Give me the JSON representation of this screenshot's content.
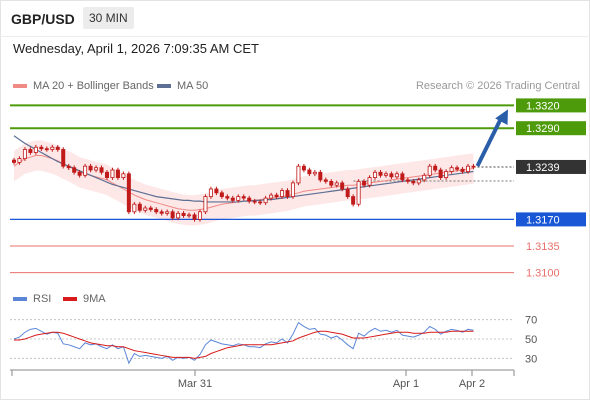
{
  "header": {
    "pair": "GBP/USD",
    "timeframe": "30 MIN"
  },
  "timestamp": "Wednesday, April 1, 2026 7:09:35 AM CET",
  "legend": {
    "ma": "MA 20 + Bollinger Bands",
    "ma50": "MA 50",
    "rsi": "RSI",
    "ma9": "9MA"
  },
  "credit": "Research © 2026 Trading Central",
  "colors": {
    "resistance": "#4d9b0a",
    "support": "#1a57d6",
    "target": "#e8706b",
    "last": "#333333",
    "candle": "#c01a1a",
    "ma20": "#f08a85",
    "ma50": "#5d6f93",
    "band": "#fde3e3",
    "rsi": "#5b86d8",
    "rsi_ma": "#d81a1a"
  },
  "chart_data": [
    {
      "type": "candlestick",
      "ylim": [
        1.3085,
        1.3335
      ],
      "x_ticks": [
        "Mar 31",
        "Apr 1",
        "Apr 2"
      ],
      "levels": [
        {
          "value": 1.332,
          "label": "1.3320",
          "kind": "resistance"
        },
        {
          "value": 1.329,
          "label": "1.3290",
          "kind": "resistance"
        },
        {
          "value": 1.3239,
          "label": "1.3239",
          "kind": "last"
        },
        {
          "value": 1.317,
          "label": "1.3170",
          "kind": "support"
        },
        {
          "value": 1.3135,
          "label": "1.3135",
          "kind": "target"
        },
        {
          "value": 1.31,
          "label": "1.3100",
          "kind": "target"
        }
      ],
      "close": [
        1.3245,
        1.325,
        1.3262,
        1.3258,
        1.3265,
        1.3263,
        1.3262,
        1.3265,
        1.3262,
        1.324,
        1.3238,
        1.3232,
        1.3228,
        1.324,
        1.3235,
        1.3238,
        1.3232,
        1.3225,
        1.3235,
        1.3225,
        1.323,
        1.318,
        1.319,
        1.3182,
        1.3185,
        1.3183,
        1.318,
        1.3178,
        1.318,
        1.3172,
        1.3178,
        1.3175,
        1.3176,
        1.317,
        1.318,
        1.32,
        1.321,
        1.3205,
        1.32,
        1.3198,
        1.3195,
        1.32,
        1.3198,
        1.3194,
        1.3193,
        1.3192,
        1.3198,
        1.3202,
        1.32,
        1.3208,
        1.32,
        1.3218,
        1.324,
        1.3235,
        1.323,
        1.3232,
        1.3222,
        1.322,
        1.3215,
        1.3218,
        1.321,
        1.32,
        1.319,
        1.322,
        1.3215,
        1.3225,
        1.3232,
        1.3228,
        1.323,
        1.3226,
        1.323,
        1.3222,
        1.322,
        1.3218,
        1.3222,
        1.3228,
        1.324,
        1.3235,
        1.3225,
        1.3233,
        1.3238,
        1.3236,
        1.3233,
        1.324,
        1.3239
      ],
      "ma20": [
        1.324,
        1.3245,
        1.325,
        1.3252,
        1.3254,
        1.3254,
        1.3252,
        1.325,
        1.3247,
        1.3243,
        1.324,
        1.3236,
        1.3232,
        1.323,
        1.3228,
        1.3226,
        1.3224,
        1.3222,
        1.3218,
        1.3214,
        1.321,
        1.3206,
        1.3202,
        1.3199,
        1.3196,
        1.3194,
        1.3192,
        1.319,
        1.3188,
        1.3186,
        1.3184,
        1.3183,
        1.3182,
        1.3182,
        1.3183,
        1.3184,
        1.3186,
        1.3188,
        1.319,
        1.3191,
        1.3192,
        1.3193,
        1.3194,
        1.3195,
        1.3195,
        1.3196,
        1.3197,
        1.3198,
        1.3199,
        1.32,
        1.3201,
        1.3203,
        1.3205,
        1.3207,
        1.3208,
        1.3209,
        1.321,
        1.3211,
        1.3212,
        1.3213,
        1.3214,
        1.3215,
        1.3215,
        1.3216,
        1.3217,
        1.3218,
        1.3219,
        1.322,
        1.3221,
        1.3222,
        1.3223,
        1.3224,
        1.3225,
        1.3226,
        1.3227,
        1.3228,
        1.3229,
        1.323,
        1.3231,
        1.3232,
        1.3233,
        1.3234,
        1.3235,
        1.3236,
        1.3237
      ],
      "ma50": [
        1.328,
        1.3275,
        1.327,
        1.3266,
        1.3262,
        1.3258,
        1.3254,
        1.325,
        1.3246,
        1.3243,
        1.324,
        1.3237,
        1.3234,
        1.3231,
        1.3228,
        1.3225,
        1.3222,
        1.3219,
        1.3216,
        1.3214,
        1.3212,
        1.321,
        1.3208,
        1.3206,
        1.3204,
        1.3202,
        1.32,
        1.3199,
        1.3198,
        1.3197,
        1.3196,
        1.3195,
        1.3195,
        1.3194,
        1.3194,
        1.3193,
        1.3193,
        1.3193,
        1.3193,
        1.3193,
        1.3193,
        1.3193,
        1.3194,
        1.3194,
        1.3195,
        1.3195,
        1.3196,
        1.3196,
        1.3197,
        1.3198,
        1.3199,
        1.32,
        1.3201,
        1.3202,
        1.3203,
        1.3204,
        1.3205,
        1.3206,
        1.3207,
        1.3208,
        1.3209,
        1.321,
        1.3211,
        1.3212,
        1.3213,
        1.3214,
        1.3215,
        1.3216,
        1.3217,
        1.3218,
        1.3219,
        1.322,
        1.3221,
        1.3222,
        1.3223,
        1.3224,
        1.3225,
        1.3226,
        1.3227,
        1.3228,
        1.3229,
        1.323,
        1.3231,
        1.3232,
        1.3233
      ],
      "projection": {
        "from": 1.3239,
        "to": 1.332
      }
    },
    {
      "type": "line",
      "ylim": [
        20,
        80
      ],
      "y_ticks": [
        70,
        50,
        30
      ],
      "series": [
        {
          "name": "RSI",
          "values": [
            50,
            52,
            57,
            60,
            61,
            58,
            55,
            57,
            56,
            45,
            44,
            42,
            40,
            46,
            44,
            45,
            42,
            40,
            44,
            40,
            42,
            25,
            35,
            32,
            33,
            32,
            31,
            30,
            32,
            28,
            31,
            30,
            31,
            28,
            34,
            44,
            49,
            47,
            45,
            44,
            43,
            45,
            44,
            42,
            42,
            41,
            45,
            47,
            46,
            50,
            46,
            55,
            67,
            63,
            60,
            61,
            55,
            54,
            51,
            53,
            49,
            44,
            40,
            56,
            53,
            58,
            61,
            58,
            59,
            57,
            59,
            54,
            53,
            52,
            54,
            57,
            63,
            60,
            55,
            58,
            60,
            59,
            57,
            60,
            59
          ]
        },
        {
          "name": "9MA",
          "values": [
            49,
            49,
            50,
            52,
            54,
            55,
            56,
            57,
            57,
            56,
            54,
            52,
            50,
            48,
            46,
            45,
            44,
            43,
            43,
            42,
            42,
            40,
            38,
            37,
            36,
            35,
            34,
            33,
            32,
            31,
            31,
            31,
            31,
            30,
            31,
            32,
            35,
            37,
            39,
            41,
            42,
            43,
            44,
            44,
            44,
            44,
            44,
            44,
            45,
            46,
            47,
            48,
            51,
            53,
            55,
            57,
            58,
            58,
            57,
            56,
            55,
            53,
            51,
            51,
            51,
            52,
            53,
            54,
            55,
            56,
            57,
            57,
            57,
            56,
            56,
            56,
            57,
            57,
            57,
            57,
            58,
            58,
            58,
            58,
            58
          ]
        }
      ]
    }
  ]
}
